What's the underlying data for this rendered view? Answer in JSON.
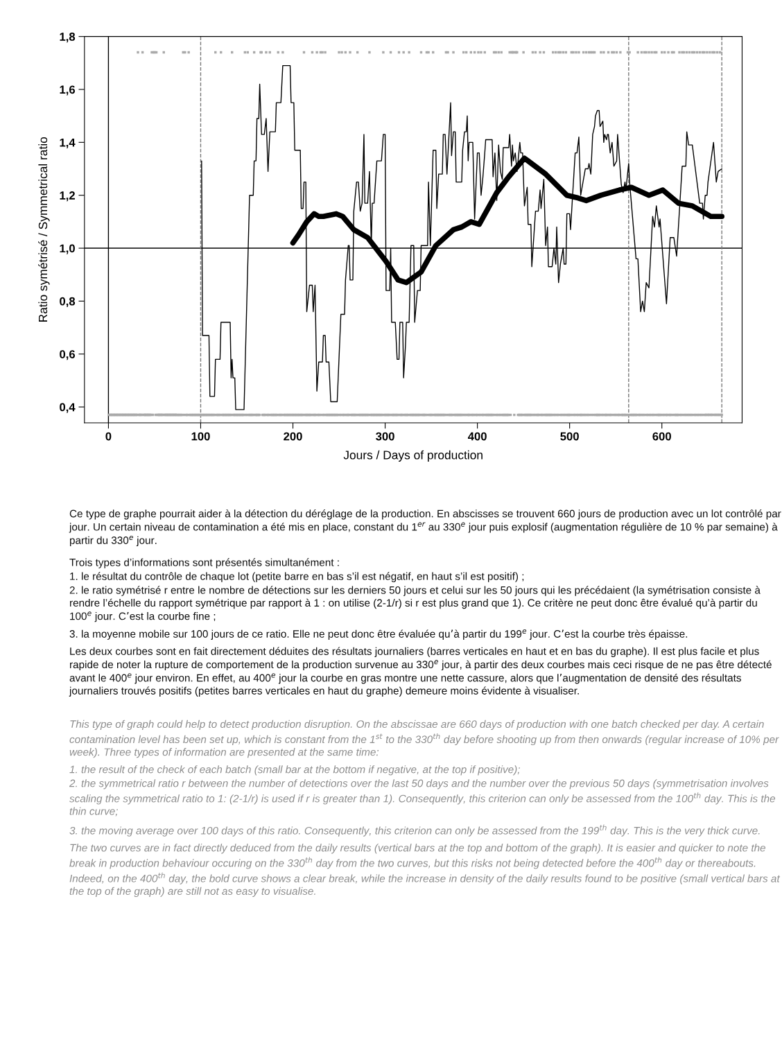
{
  "chart_data": {
    "type": "line",
    "xlabel": "Jours / Days of production",
    "ylabel": "Ratio symétrisé / Symmetrical ratio",
    "xlim": [
      -26,
      687
    ],
    "ylim": [
      0.34,
      1.8
    ],
    "xticks": [
      0,
      100,
      200,
      300,
      400,
      500,
      600
    ],
    "yticks": [
      {
        "value": 0.4,
        "label": "0,4"
      },
      {
        "value": 0.6,
        "label": "0,6"
      },
      {
        "value": 0.8,
        "label": "0,8"
      },
      {
        "value": 1.0,
        "label": "1,0"
      },
      {
        "value": 1.2,
        "label": "1,2"
      },
      {
        "value": 1.4,
        "label": "1,4"
      },
      {
        "value": 1.6,
        "label": "1,6"
      },
      {
        "value": 1.8,
        "label": "1,8"
      }
    ],
    "ref_lines": [
      {
        "axis": "x",
        "value": 0,
        "color": "#000000",
        "line_style": "solid"
      },
      {
        "axis": "y",
        "value": 1.0,
        "color": "#000000",
        "line_style": "solid"
      },
      {
        "axis": "x",
        "value": 100,
        "color": "#777777",
        "line_style": "dashed"
      },
      {
        "axis": "x",
        "value": 564,
        "color": "#777777",
        "line_style": "dashed"
      },
      {
        "axis": "x",
        "value": 665,
        "color": "#777777",
        "line_style": "dashed"
      }
    ],
    "series": [
      {
        "type": "line",
        "color": "#000000",
        "x": [
          101,
          102,
          109,
          110,
          115,
          116,
          121,
          122,
          132,
          133,
          134,
          135,
          137,
          138,
          147,
          153,
          157,
          158,
          160,
          161,
          163,
          164,
          166,
          169,
          171,
          173,
          175,
          181,
          182,
          187,
          189,
          197,
          198,
          201,
          202,
          208,
          209,
          211,
          212,
          214,
          215,
          218,
          221,
          222,
          224,
          226,
          228,
          232,
          233,
          235,
          236,
          239,
          241,
          248,
          252,
          256,
          257,
          260,
          261,
          262,
          265,
          266,
          269,
          271,
          273,
          275,
          277,
          278,
          281,
          283,
          285,
          286,
          288,
          291,
          296,
          298,
          300,
          301,
          305,
          306,
          307,
          311,
          313,
          315,
          316,
          319,
          320,
          322,
          323,
          326,
          328,
          331,
          332,
          335,
          338,
          339,
          346,
          347,
          349,
          352,
          355,
          356,
          358,
          362,
          363,
          365,
          367,
          371,
          372,
          374,
          376,
          377,
          383,
          384,
          386,
          388,
          389,
          390,
          391,
          395,
          397,
          400,
          402,
          404,
          406,
          408,
          409,
          416,
          417,
          419,
          421,
          423,
          425,
          427,
          428,
          434,
          435,
          437,
          438,
          439,
          441,
          443,
          446,
          447,
          449,
          451,
          454,
          455,
          458,
          459,
          463,
          466,
          468,
          469,
          472,
          474,
          476,
          477,
          481,
          483,
          485,
          486,
          488,
          490,
          493,
          494,
          496,
          497,
          500,
          501,
          506,
          508,
          510,
          512,
          517,
          520,
          521,
          523,
          525,
          527,
          528,
          530,
          532,
          533,
          536,
          537,
          538,
          540,
          541,
          542,
          544,
          546,
          548,
          551,
          552,
          556,
          558,
          560,
          561,
          564,
          565,
          572,
          574,
          577,
          579,
          581,
          583,
          586,
          590,
          592,
          594,
          597,
          598,
          605,
          609,
          613,
          616,
          622,
          626,
          627,
          629,
          633,
          641,
          644,
          645,
          647,
          649,
          650,
          652,
          656,
          659,
          661,
          665
        ],
        "values": [
          1.33,
          0.67,
          0.67,
          0.44,
          0.44,
          0.58,
          0.58,
          0.72,
          0.72,
          0.51,
          0.58,
          0.51,
          0.51,
          0.39,
          0.39,
          1.2,
          1.2,
          1.33,
          1.33,
          1.49,
          1.49,
          1.62,
          1.43,
          1.43,
          1.49,
          1.29,
          1.44,
          1.44,
          1.55,
          1.55,
          1.69,
          1.69,
          1.55,
          1.55,
          1.37,
          1.37,
          1.15,
          1.15,
          1.25,
          1.25,
          0.76,
          0.86,
          0.86,
          0.76,
          0.86,
          0.46,
          0.57,
          0.57,
          0.67,
          0.67,
          0.57,
          0.57,
          0.42,
          0.42,
          0.75,
          0.75,
          0.88,
          1.01,
          1.01,
          0.88,
          0.88,
          1.14,
          1.25,
          1.25,
          1.14,
          1.17,
          1.43,
          1.17,
          1.17,
          1.29,
          1.01,
          1.17,
          1.17,
          1.33,
          1.33,
          1.43,
          1.43,
          0.84,
          0.84,
          1.0,
          0.72,
          0.72,
          0.58,
          0.58,
          0.72,
          0.72,
          0.51,
          0.63,
          0.72,
          0.72,
          1.01,
          1.01,
          0.72,
          0.84,
          0.84,
          1.01,
          1.01,
          1.25,
          1.01,
          1.37,
          1.37,
          1.15,
          1.28,
          1.28,
          1.43,
          1.43,
          1.28,
          1.55,
          1.35,
          1.44,
          1.44,
          1.25,
          1.25,
          1.37,
          1.44,
          1.44,
          1.5,
          1.33,
          1.4,
          1.4,
          1.11,
          1.36,
          1.36,
          1.2,
          1.27,
          1.36,
          1.41,
          1.41,
          1.27,
          1.36,
          1.18,
          1.39,
          1.29,
          1.26,
          1.38,
          1.38,
          1.43,
          1.31,
          1.39,
          1.33,
          1.36,
          1.29,
          1.4,
          1.36,
          1.36,
          1.16,
          1.23,
          1.09,
          1.09,
          0.93,
          1.14,
          1.14,
          1.22,
          1.15,
          1.26,
          1.01,
          1.08,
          0.93,
          0.93,
          1.0,
          0.94,
          1.08,
          0.87,
          0.94,
          1.0,
          0.94,
          0.94,
          1.13,
          1.13,
          1.07,
          1.36,
          1.36,
          1.42,
          1.2,
          1.3,
          1.3,
          1.32,
          1.28,
          1.43,
          1.46,
          1.5,
          1.52,
          1.52,
          1.46,
          1.48,
          1.4,
          1.43,
          1.41,
          1.43,
          1.43,
          1.36,
          1.4,
          1.31,
          1.33,
          1.43,
          1.24,
          1.21,
          1.25,
          1.22,
          1.32,
          1.25,
          0.96,
          0.96,
          0.76,
          0.8,
          0.76,
          0.87,
          0.85,
          1.12,
          1.08,
          1.16,
          1.08,
          1.11,
          0.79,
          1.04,
          1.04,
          0.97,
          1.31,
          1.31,
          1.44,
          1.39,
          1.39,
          1.17,
          1.17,
          1.11,
          1.2,
          1.2,
          1.25,
          1.3,
          1.4,
          1.25,
          1.29,
          1.3
        ]
      },
      {
        "type": "line",
        "color": "#000000",
        "x": [
          200,
          206,
          215,
          223,
          228,
          233,
          247,
          254,
          266,
          281,
          301,
          314,
          323,
          339,
          355,
          374,
          383,
          393,
          402,
          421,
          434,
          451,
          474,
          497,
          509,
          518,
          534,
          554,
          567,
          586,
          601,
          618,
          633,
          653,
          665
        ],
        "values": [
          1.02,
          1.05,
          1.1,
          1.13,
          1.12,
          1.12,
          1.13,
          1.12,
          1.07,
          1.04,
          0.95,
          0.88,
          0.87,
          0.91,
          1.01,
          1.07,
          1.08,
          1.1,
          1.09,
          1.21,
          1.27,
          1.34,
          1.28,
          1.2,
          1.19,
          1.18,
          1.2,
          1.22,
          1.23,
          1.2,
          1.22,
          1.17,
          1.16,
          1.12,
          1.12
        ]
      },
      {
        "type": "scatter",
        "color": "#aaaaaa",
        "x": [
          32,
          37,
          47,
          49,
          50,
          52,
          60,
          81,
          83,
          87,
          116,
          122,
          134,
          148,
          151,
          158,
          165,
          166,
          171,
          175,
          184,
          189,
          212,
          221,
          226,
          230,
          232,
          235,
          250,
          253,
          257,
          262,
          270,
          283,
          298,
          306,
          315,
          320,
          326,
          339,
          345,
          347,
          352,
          366,
          368,
          374,
          385,
          388,
          393,
          397,
          401,
          404,
          408,
          418,
          420,
          423,
          426,
          435,
          437,
          438,
          439,
          441,
          442,
          443,
          450,
          460,
          463,
          468,
          472,
          482,
          485,
          488,
          490,
          493,
          496,
          502,
          504,
          507,
          510,
          515,
          518,
          521,
          523,
          525,
          527,
          534,
          537,
          542,
          546,
          548,
          551,
          555,
          563,
          565,
          574,
          578,
          581,
          583,
          586,
          589,
          592,
          594,
          600,
          603,
          607,
          611,
          613,
          619,
          622,
          624,
          627,
          630,
          633,
          635,
          638,
          641,
          644,
          646,
          649,
          652,
          655,
          657,
          660,
          663
        ],
        "values": [
          1.74,
          1.74,
          1.74,
          1.74,
          1.74,
          1.74,
          1.74,
          1.74,
          1.74,
          1.74,
          1.74,
          1.74,
          1.74,
          1.74,
          1.74,
          1.74,
          1.74,
          1.74,
          1.74,
          1.74,
          1.74,
          1.74,
          1.74,
          1.74,
          1.74,
          1.74,
          1.74,
          1.74,
          1.74,
          1.74,
          1.74,
          1.74,
          1.74,
          1.74,
          1.74,
          1.74,
          1.74,
          1.74,
          1.74,
          1.74,
          1.74,
          1.74,
          1.74,
          1.74,
          1.74,
          1.74,
          1.74,
          1.74,
          1.74,
          1.74,
          1.74,
          1.74,
          1.74,
          1.74,
          1.74,
          1.74,
          1.74,
          1.74,
          1.74,
          1.74,
          1.74,
          1.74,
          1.74,
          1.74,
          1.74,
          1.74,
          1.74,
          1.74,
          1.74,
          1.74,
          1.74,
          1.74,
          1.74,
          1.74,
          1.74,
          1.74,
          1.74,
          1.74,
          1.74,
          1.74,
          1.74,
          1.74,
          1.74,
          1.74,
          1.74,
          1.74,
          1.74,
          1.74,
          1.74,
          1.74,
          1.74,
          1.74,
          1.74,
          1.74,
          1.74,
          1.74,
          1.74,
          1.74,
          1.74,
          1.74,
          1.74,
          1.74,
          1.74,
          1.74,
          1.74,
          1.74,
          1.74,
          1.74,
          1.74,
          1.74,
          1.74,
          1.74,
          1.74,
          1.74,
          1.74,
          1.74,
          1.74,
          1.74,
          1.74,
          1.74,
          1.74,
          1.74,
          1.74,
          1.74
        ]
      },
      {
        "type": "scatter",
        "color": "#aaaaaa",
        "x": [
          1,
          2,
          3,
          4,
          5,
          6,
          7,
          8,
          9,
          10,
          11,
          12,
          13,
          14,
          15,
          16,
          17,
          18,
          19,
          20,
          21,
          22,
          23,
          24,
          25,
          26,
          27,
          28,
          29,
          30,
          31,
          33,
          34,
          35,
          36,
          38,
          39,
          40,
          41,
          42,
          43,
          44,
          45,
          46,
          48,
          51,
          53,
          54,
          55,
          56,
          57,
          58,
          59,
          61,
          62,
          63,
          64,
          65,
          66,
          67,
          68,
          69,
          70,
          71,
          72,
          73,
          74,
          75,
          76,
          77,
          78,
          79,
          80,
          82,
          84,
          85,
          86,
          88,
          89,
          90,
          91,
          92,
          93,
          94,
          95,
          96,
          97,
          98,
          99,
          100,
          101,
          102,
          103,
          104,
          105,
          106,
          107,
          108,
          109,
          110,
          111,
          112,
          113,
          114,
          115,
          117,
          118,
          119,
          120,
          121,
          123,
          124,
          125,
          126,
          127,
          128,
          129,
          130,
          131,
          132,
          133,
          135,
          136,
          137,
          138,
          139,
          140,
          141,
          142,
          143,
          144,
          145,
          146,
          147,
          149,
          150,
          152,
          153,
          154,
          155,
          156,
          157,
          159,
          160,
          161,
          162,
          163,
          164,
          167,
          168,
          169,
          170,
          172,
          173,
          174,
          176,
          177,
          178,
          179,
          180,
          181,
          182,
          183,
          185,
          186,
          187,
          188,
          190,
          191,
          192,
          193,
          194,
          195,
          196,
          197,
          198,
          199,
          200,
          201,
          202,
          203,
          204,
          205,
          206,
          207,
          208,
          209,
          210,
          211,
          213,
          214,
          215,
          216,
          217,
          218,
          219,
          220,
          222,
          223,
          224,
          225,
          227,
          228,
          229,
          231,
          233,
          234,
          236,
          237,
          238,
          239,
          240,
          241,
          242,
          243,
          244,
          245,
          246,
          247,
          248,
          249,
          251,
          252,
          254,
          255,
          256,
          258,
          259,
          260,
          261,
          263,
          264,
          265,
          266,
          267,
          268,
          269,
          271,
          272,
          273,
          274,
          275,
          276,
          277,
          278,
          279,
          280,
          281,
          282,
          284,
          285,
          286,
          287,
          288,
          289,
          290,
          291,
          292,
          293,
          294,
          295,
          296,
          297,
          299,
          300,
          301,
          302,
          303,
          304,
          305,
          307,
          308,
          309,
          310,
          311,
          312,
          313,
          314,
          316,
          317,
          318,
          319,
          321,
          322,
          323,
          324,
          325,
          327,
          328,
          329,
          330,
          331,
          332,
          333,
          334,
          335,
          336,
          337,
          338,
          340,
          341,
          342,
          343,
          344,
          346,
          348,
          349,
          350,
          351,
          353,
          354,
          355,
          356,
          357,
          358,
          359,
          360,
          361,
          362,
          363,
          364,
          365,
          367,
          369,
          370,
          371,
          372,
          373,
          375,
          376,
          377,
          378,
          379,
          380,
          381,
          382,
          383,
          384,
          386,
          387,
          389,
          390,
          391,
          392,
          394,
          395,
          396,
          398,
          399,
          400,
          402,
          403,
          405,
          406,
          407,
          409,
          410,
          411,
          412,
          413,
          414,
          415,
          416,
          417,
          419,
          421,
          422,
          424,
          425,
          427,
          428,
          429,
          430,
          431,
          432,
          433,
          434,
          436,
          440,
          444,
          445,
          446,
          447,
          448,
          449,
          451,
          452,
          453,
          454,
          455,
          456,
          457,
          458,
          459,
          461,
          462,
          464,
          465,
          466,
          467,
          469,
          470,
          471,
          473,
          474,
          475,
          476,
          477,
          478,
          479,
          480,
          481,
          483,
          484,
          486,
          487,
          489,
          491,
          492,
          494,
          495,
          497,
          498,
          499,
          500,
          501,
          503,
          505,
          506,
          508,
          509,
          511,
          512,
          513,
          514,
          516,
          517,
          519,
          520,
          522,
          524,
          526,
          528,
          529,
          530,
          531,
          532,
          533,
          535,
          536,
          538,
          539,
          540,
          541,
          543,
          544,
          545,
          547,
          549,
          550,
          552,
          553,
          554,
          556,
          557,
          558,
          559,
          560,
          561,
          562,
          564,
          566,
          567,
          568,
          569,
          570,
          571,
          572,
          573,
          575,
          576,
          577,
          579,
          580,
          582,
          584,
          585,
          587,
          588,
          590,
          591,
          593,
          595,
          596,
          597,
          598,
          599,
          601,
          602,
          604,
          605,
          606,
          608,
          609,
          610,
          612,
          614,
          615,
          616,
          617,
          618,
          620,
          621,
          623,
          625,
          626,
          628,
          629,
          631,
          632,
          634,
          636,
          637,
          639,
          640,
          642,
          643,
          645,
          647,
          648,
          650,
          651,
          653,
          654,
          656,
          658,
          659,
          661,
          662,
          664,
          665
        ],
        "values": [
          0.37,
          0.37,
          0.37,
          0.37,
          0.37,
          0.37,
          0.37,
          0.37,
          0.37,
          0.37,
          0.37,
          0.37,
          0.37,
          0.37,
          0.37,
          0.37,
          0.37,
          0.37,
          0.37,
          0.37,
          0.37,
          0.37,
          0.37,
          0.37,
          0.37,
          0.37,
          0.37,
          0.37,
          0.37,
          0.37,
          0.37,
          0.37,
          0.37,
          0.37,
          0.37,
          0.37,
          0.37,
          0.37,
          0.37,
          0.37,
          0.37,
          0.37,
          0.37,
          0.37,
          0.37,
          0.37,
          0.37,
          0.37,
          0.37,
          0.37,
          0.37,
          0.37,
          0.37,
          0.37,
          0.37,
          0.37,
          0.37,
          0.37,
          0.37,
          0.37,
          0.37,
          0.37,
          0.37,
          0.37,
          0.37,
          0.37,
          0.37,
          0.37,
          0.37,
          0.37,
          0.37,
          0.37,
          0.37,
          0.37,
          0.37,
          0.37,
          0.37,
          0.37,
          0.37,
          0.37,
          0.37,
          0.37,
          0.37,
          0.37,
          0.37,
          0.37,
          0.37,
          0.37,
          0.37,
          0.37,
          0.37,
          0.37,
          0.37,
          0.37,
          0.37,
          0.37,
          0.37,
          0.37,
          0.37,
          0.37,
          0.37,
          0.37,
          0.37,
          0.37,
          0.37,
          0.37,
          0.37,
          0.37,
          0.37,
          0.37,
          0.37,
          0.37,
          0.37,
          0.37,
          0.37,
          0.37,
          0.37,
          0.37,
          0.37,
          0.37,
          0.37,
          0.37,
          0.37,
          0.37,
          0.37,
          0.37,
          0.37,
          0.37,
          0.37,
          0.37,
          0.37,
          0.37,
          0.37,
          0.37,
          0.37,
          0.37,
          0.37,
          0.37,
          0.37,
          0.37,
          0.37,
          0.37,
          0.37,
          0.37,
          0.37,
          0.37,
          0.37,
          0.37,
          0.37,
          0.37,
          0.37,
          0.37,
          0.37,
          0.37,
          0.37,
          0.37,
          0.37,
          0.37,
          0.37,
          0.37,
          0.37,
          0.37,
          0.37,
          0.37,
          0.37,
          0.37,
          0.37,
          0.37,
          0.37,
          0.37,
          0.37,
          0.37,
          0.37,
          0.37,
          0.37,
          0.37,
          0.37,
          0.37,
          0.37,
          0.37,
          0.37,
          0.37,
          0.37,
          0.37,
          0.37,
          0.37,
          0.37,
          0.37,
          0.37,
          0.37,
          0.37,
          0.37,
          0.37,
          0.37,
          0.37,
          0.37,
          0.37,
          0.37,
          0.37,
          0.37,
          0.37,
          0.37,
          0.37,
          0.37,
          0.37,
          0.37,
          0.37,
          0.37,
          0.37,
          0.37,
          0.37,
          0.37,
          0.37,
          0.37,
          0.37,
          0.37,
          0.37,
          0.37,
          0.37,
          0.37,
          0.37,
          0.37,
          0.37,
          0.37,
          0.37,
          0.37,
          0.37,
          0.37,
          0.37,
          0.37,
          0.37,
          0.37,
          0.37,
          0.37,
          0.37,
          0.37,
          0.37,
          0.37,
          0.37,
          0.37,
          0.37,
          0.37,
          0.37,
          0.37,
          0.37,
          0.37,
          0.37,
          0.37,
          0.37,
          0.37,
          0.37,
          0.37,
          0.37,
          0.37,
          0.37,
          0.37,
          0.37,
          0.37,
          0.37,
          0.37,
          0.37,
          0.37,
          0.37,
          0.37,
          0.37,
          0.37,
          0.37,
          0.37,
          0.37,
          0.37,
          0.37,
          0.37,
          0.37,
          0.37,
          0.37,
          0.37,
          0.37,
          0.37,
          0.37,
          0.37,
          0.37,
          0.37,
          0.37,
          0.37,
          0.37,
          0.37,
          0.37,
          0.37,
          0.37,
          0.37,
          0.37,
          0.37,
          0.37,
          0.37,
          0.37,
          0.37,
          0.37,
          0.37,
          0.37,
          0.37,
          0.37,
          0.37,
          0.37,
          0.37,
          0.37,
          0.37,
          0.37,
          0.37,
          0.37,
          0.37,
          0.37,
          0.37,
          0.37,
          0.37,
          0.37,
          0.37,
          0.37,
          0.37,
          0.37,
          0.37,
          0.37,
          0.37,
          0.37,
          0.37,
          0.37,
          0.37,
          0.37,
          0.37,
          0.37,
          0.37,
          0.37,
          0.37,
          0.37,
          0.37,
          0.37,
          0.37,
          0.37,
          0.37,
          0.37,
          0.37,
          0.37,
          0.37,
          0.37,
          0.37,
          0.37,
          0.37,
          0.37,
          0.37,
          0.37,
          0.37,
          0.37,
          0.37,
          0.37,
          0.37,
          0.37,
          0.37,
          0.37,
          0.37,
          0.37,
          0.37,
          0.37,
          0.37,
          0.37,
          0.37,
          0.37,
          0.37,
          0.37,
          0.37,
          0.37,
          0.37,
          0.37,
          0.37,
          0.37,
          0.37,
          0.37,
          0.37,
          0.37,
          0.37,
          0.37,
          0.37,
          0.37,
          0.37,
          0.37,
          0.37,
          0.37,
          0.37,
          0.37,
          0.37,
          0.37,
          0.37,
          0.37,
          0.37,
          0.37,
          0.37,
          0.37,
          0.37,
          0.37,
          0.37,
          0.37,
          0.37,
          0.37,
          0.37,
          0.37,
          0.37,
          0.37,
          0.37,
          0.37,
          0.37,
          0.37,
          0.37,
          0.37,
          0.37,
          0.37,
          0.37,
          0.37,
          0.37,
          0.37,
          0.37,
          0.37,
          0.37,
          0.37,
          0.37,
          0.37,
          0.37,
          0.37,
          0.37,
          0.37,
          0.37,
          0.37,
          0.37,
          0.37,
          0.37,
          0.37,
          0.37,
          0.37,
          0.37,
          0.37,
          0.37,
          0.37,
          0.37,
          0.37,
          0.37,
          0.37,
          0.37,
          0.37,
          0.37,
          0.37,
          0.37,
          0.37,
          0.37,
          0.37,
          0.37,
          0.37,
          0.37,
          0.37,
          0.37,
          0.37,
          0.37,
          0.37,
          0.37,
          0.37,
          0.37,
          0.37,
          0.37,
          0.37,
          0.37,
          0.37,
          0.37,
          0.37,
          0.37,
          0.37,
          0.37,
          0.37,
          0.37,
          0.37,
          0.37,
          0.37,
          0.37,
          0.37,
          0.37,
          0.37,
          0.37,
          0.37,
          0.37,
          0.37,
          0.37,
          0.37,
          0.37,
          0.37,
          0.37,
          0.37,
          0.37,
          0.37,
          0.37,
          0.37,
          0.37,
          0.37,
          0.37,
          0.37,
          0.37,
          0.37,
          0.37,
          0.37,
          0.37,
          0.37,
          0.37,
          0.37,
          0.37,
          0.37,
          0.37,
          0.37,
          0.37,
          0.37,
          0.37,
          0.37,
          0.37,
          0.37,
          0.37,
          0.37,
          0.37,
          0.37,
          0.37,
          0.37,
          0.37,
          0.37,
          0.37,
          0.37,
          0.37,
          0.37,
          0.37,
          0.37,
          0.37,
          0.37,
          0.37,
          0.37,
          0.37,
          0.37,
          0.37,
          0.37,
          0.37,
          0.37
        ]
      }
    ],
    "annotations": [
      "Ce type de graphe pourrait aider à la détection du déréglage de la production. En abscisses se trouvent 660 jours de production avec un lot contrôlé par jour. Un certain niveau de contamination a été mis en place, constant du 1$^{er}$ au 330$^{e}$ jour puis explosif (augmentation régulière de 10 % par semaine) à partir du 330$^{e}$ jour.",
      "Trois types d’informations sont présentés simultanément :",
      "1. le résultat du contrôle de chaque lot (petite barre en bas s’il est négatif, en haut s’il est positif) ;",
      "2. le ratio symétrisé r entre le nombre de détections sur les derniers 50 jours et celui sur les 50 jours qui les précédaient (la symétrisation consiste à rendre l’échelle du rapport symétrique par rapport à 1 : on utilise (2-1/r) si r est plus grand que 1). Ce critère ne peut donc être évalué qu’à partir du 100$^{e}$ jour. C’est la courbe fine ;",
      "3. la moyenne mobile sur 100 jours de ce ratio. Elle ne peut donc être évaluée qu’à partir du 199$^{e}$ jour. C’est la courbe très épaisse.",
      "Les deux courbes sont en fait directement déduites des résultats journaliers (barres verticales en haut et en bas du graphe). Il est plus facile et plus rapide de noter la rupture de comportement de la production survenue au 330$^{e}$ jour, à partir des deux courbes mais ceci risque de ne pas être détecté avant le 400$^{e}$ jour environ. En effet, au 400$^{e}$ jour la courbe en gras montre une nette cassure, alors que l’augmentation de densité des résultats journaliers trouvés positifs (petites barres verticales en haut du graphe) demeure moins évidente à visualiser.",
      "This type of graph could help to detect production disruption. On the abscissae are 660 days of production with one batch checked per day. A certain contamination level has been set up, which is constant from the 1$^{st}$ to the 330$^{th}$ day before shooting up from then onwards (regular increase of 10% per week). Three types of information are presented at the same time:",
      "1. the result of the check of each batch (small bar at the bottom if negative, at the top if positive);",
      "2. the symmetrical ratio r between the number of detections over the last 50 days and the number over the previous 50 days (symmetrisation involves scaling the symmetrical ratio to 1: (2-1/r) is used if r is greater than 1). Consequently, this criterion can only be assessed from the 100$^{th}$ day. This is the thin curve;",
      "3. the moving average over 100 days of this ratio. Consequently, this criterion can only be assessed from the 199$^{th}$ day. This is the very thick curve.",
      "The two curves are in fact directly deduced from the daily results (vertical bars at the top and bottom of the graph). It is easier and quicker to note the break in production behaviour occuring on the 330$^{th}$ day from the two curves, but this risks not being detected before the 400$^{th}$ day or thereabouts. Indeed, on the 400$^{th}$ day, the bold curve shows a clear break, while the increase in density of the daily results found to be positive (small vertical bars at the top of the graph) are still not as easy to visualise."
    ]
  }
}
